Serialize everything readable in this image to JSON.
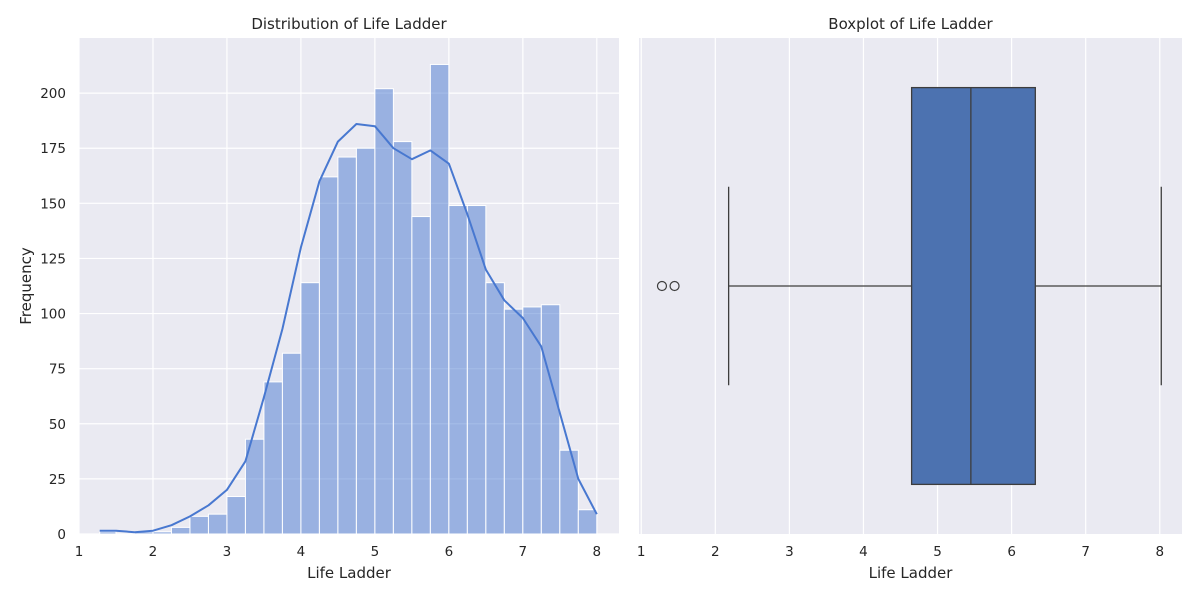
{
  "colors": {
    "panel_bg": "#eaeaf2",
    "grid": "#ffffff",
    "hist_fill": "#4878d0",
    "hist_fill_opacity": 0.5,
    "kde_line": "#4878d0",
    "box_fill": "#4c72b0",
    "box_edge": "#3d3d3d",
    "text": "#262626"
  },
  "chart_data": [
    {
      "type": "bar",
      "subtype": "histogram",
      "title": "Distribution of Life Ladder",
      "xlabel": "Life Ladder",
      "ylabel": "Frequency",
      "xlim": [
        1.0,
        8.3
      ],
      "ylim": [
        0,
        225
      ],
      "xticks": [
        1,
        2,
        3,
        4,
        5,
        6,
        7,
        8
      ],
      "yticks": [
        0,
        25,
        50,
        75,
        100,
        125,
        150,
        175,
        200
      ],
      "grid": true,
      "bin_edges": [
        1.28,
        1.5,
        1.75,
        2.0,
        2.25,
        2.5,
        2.75,
        3.0,
        3.25,
        3.5,
        3.75,
        4.0,
        4.25,
        4.5,
        4.75,
        5.0,
        5.25,
        5.5,
        5.75,
        6.0,
        6.25,
        6.5,
        6.75,
        7.0,
        7.25,
        7.5,
        7.75,
        8.0
      ],
      "counts": [
        1,
        0,
        1,
        1,
        3,
        8,
        9,
        17,
        43,
        69,
        82,
        114,
        162,
        171,
        175,
        202,
        178,
        144,
        213,
        149,
        149,
        114,
        102,
        103,
        104,
        38,
        11
      ],
      "kde": {
        "x": [
          1.28,
          1.5,
          1.75,
          2.0,
          2.25,
          2.5,
          2.75,
          3.0,
          3.25,
          3.5,
          3.75,
          4.0,
          4.25,
          4.5,
          4.75,
          5.0,
          5.25,
          5.5,
          5.75,
          6.0,
          6.25,
          6.5,
          6.75,
          7.0,
          7.25,
          7.5,
          7.75,
          8.0
        ],
        "y": [
          1.5,
          1.5,
          0.8,
          1.5,
          4,
          8,
          13,
          20,
          33,
          62,
          93,
          130,
          160,
          178,
          186,
          185,
          175,
          170,
          174,
          168,
          145,
          120,
          106,
          98,
          85,
          55,
          25,
          9
        ]
      }
    },
    {
      "type": "boxplot",
      "title": "Boxplot of Life Ladder",
      "xlabel": "Life Ladder",
      "xlim": [
        0.97,
        8.3
      ],
      "xticks": [
        1,
        2,
        3,
        4,
        5,
        6,
        7,
        8
      ],
      "grid": true,
      "whisker_low": 2.18,
      "q1": 4.65,
      "median": 5.45,
      "q3": 6.32,
      "whisker_high": 8.02,
      "outliers": [
        1.28,
        1.45
      ]
    }
  ]
}
